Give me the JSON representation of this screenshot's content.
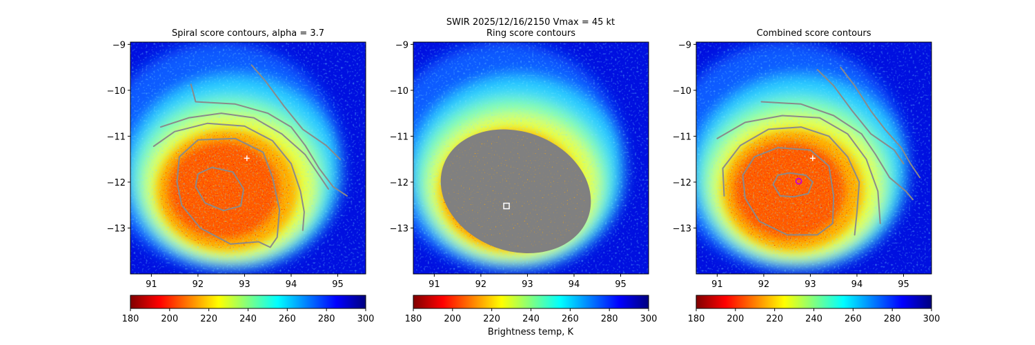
{
  "figure": {
    "suptitle_line1": "SWIR  2025/12/16/2150    Vmax = 45 kt",
    "colorbar_label": "Brightness temp, K"
  },
  "chart_data": [
    {
      "type": "heatmap",
      "title": "Spiral score contours, alpha =  3.7",
      "xlim": [
        90.55,
        95.6
      ],
      "ylim": [
        -14.0,
        -8.95
      ],
      "x_ticks": [
        91,
        92,
        93,
        94,
        95
      ],
      "y_ticks": [
        -9,
        -10,
        -11,
        -12,
        -13
      ],
      "colorbar": {
        "range": [
          180,
          300
        ],
        "ticks": [
          180,
          200,
          220,
          240,
          260,
          280,
          300
        ],
        "colormap": "jet_r"
      },
      "marker": {
        "symbol": "+",
        "x": 93.05,
        "y": -11.48,
        "color": "#ffffff"
      },
      "contours": [
        [
          [
            92.3,
            -11.68
          ],
          [
            92.75,
            -11.78
          ],
          [
            92.98,
            -12.15
          ],
          [
            92.92,
            -12.52
          ],
          [
            92.55,
            -12.62
          ],
          [
            92.15,
            -12.45
          ],
          [
            91.95,
            -12.1
          ],
          [
            92.0,
            -11.82
          ],
          [
            92.3,
            -11.68
          ]
        ],
        [
          [
            92.0,
            -11.08
          ],
          [
            92.8,
            -11.05
          ],
          [
            93.4,
            -11.35
          ],
          [
            93.6,
            -11.9
          ],
          [
            93.75,
            -12.6
          ],
          [
            93.7,
            -13.2
          ],
          [
            93.55,
            -13.42
          ],
          [
            93.3,
            -13.3
          ],
          [
            92.7,
            -13.35
          ],
          [
            92.05,
            -13.0
          ],
          [
            91.65,
            -12.5
          ],
          [
            91.55,
            -12.0
          ],
          [
            91.6,
            -11.45
          ],
          [
            92.0,
            -11.08
          ]
        ],
        [
          [
            91.05,
            -11.22
          ],
          [
            91.5,
            -10.9
          ],
          [
            92.2,
            -10.72
          ],
          [
            93.0,
            -10.78
          ],
          [
            93.6,
            -11.1
          ],
          [
            94.0,
            -11.6
          ],
          [
            94.2,
            -12.2
          ],
          [
            94.28,
            -12.65
          ],
          [
            94.25,
            -13.05
          ]
        ],
        [
          [
            91.2,
            -10.8
          ],
          [
            91.8,
            -10.6
          ],
          [
            92.5,
            -10.5
          ],
          [
            93.2,
            -10.6
          ],
          [
            93.8,
            -10.95
          ],
          [
            94.3,
            -11.4
          ],
          [
            94.6,
            -11.85
          ],
          [
            94.8,
            -12.15
          ]
        ],
        [
          [
            91.85,
            -9.87
          ],
          [
            91.95,
            -10.25
          ],
          [
            92.8,
            -10.3
          ],
          [
            93.5,
            -10.5
          ],
          [
            94.0,
            -10.8
          ],
          [
            94.3,
            -11.2
          ],
          [
            94.6,
            -11.7
          ],
          [
            94.9,
            -12.1
          ],
          [
            95.2,
            -12.3
          ]
        ],
        [
          [
            93.15,
            -9.45
          ],
          [
            93.45,
            -9.8
          ],
          [
            93.85,
            -10.35
          ],
          [
            94.25,
            -10.85
          ],
          [
            94.75,
            -11.2
          ],
          [
            95.05,
            -11.5
          ]
        ]
      ]
    },
    {
      "type": "heatmap",
      "title": "Ring score contours",
      "xlim": [
        90.55,
        95.6
      ],
      "ylim": [
        -14.0,
        -8.95
      ],
      "x_ticks": [
        91,
        92,
        93,
        94,
        95
      ],
      "y_ticks": [
        -9,
        -10,
        -11,
        -12,
        -13
      ],
      "colorbar": {
        "range": [
          180,
          300
        ],
        "ticks": [
          180,
          200,
          220,
          240,
          260,
          280,
          300
        ],
        "colormap": "jet_r"
      },
      "marker": {
        "symbol": "square",
        "x": 92.55,
        "y": -12.52,
        "color": "#ffffff"
      },
      "ring_region": {
        "center": [
          92.75,
          -12.2
        ],
        "semi_axes": [
          1.65,
          1.3
        ],
        "color": "#808080"
      }
    },
    {
      "type": "heatmap",
      "title": "Combined score contours",
      "xlim": [
        90.55,
        95.6
      ],
      "ylim": [
        -14.0,
        -8.95
      ],
      "x_ticks": [
        91,
        92,
        93,
        94,
        95
      ],
      "y_ticks": [
        -9,
        -10,
        -11,
        -12,
        -13
      ],
      "colorbar": {
        "range": [
          180,
          300
        ],
        "ticks": [
          180,
          200,
          220,
          240,
          260,
          280,
          300
        ],
        "colormap": "jet_r"
      },
      "marker": {
        "symbol": "+",
        "x": 93.05,
        "y": -11.48,
        "color": "#ffffff"
      },
      "center_marker": {
        "symbol": "circle",
        "x": 92.75,
        "y": -11.98,
        "color": "#cc00cc"
      },
      "contours": [
        [
          [
            92.55,
            -11.8
          ],
          [
            92.9,
            -11.85
          ],
          [
            93.05,
            -12.0
          ],
          [
            92.95,
            -12.25
          ],
          [
            92.65,
            -12.32
          ],
          [
            92.35,
            -12.3
          ],
          [
            92.2,
            -12.05
          ],
          [
            92.3,
            -11.85
          ],
          [
            92.55,
            -11.8
          ]
        ],
        [
          [
            92.3,
            -11.25
          ],
          [
            93.0,
            -11.3
          ],
          [
            93.4,
            -11.65
          ],
          [
            93.5,
            -12.3
          ],
          [
            93.48,
            -12.9
          ],
          [
            93.15,
            -13.15
          ],
          [
            92.5,
            -13.15
          ],
          [
            91.9,
            -12.85
          ],
          [
            91.6,
            -12.35
          ],
          [
            91.55,
            -11.85
          ],
          [
            91.8,
            -11.45
          ],
          [
            92.3,
            -11.25
          ]
        ],
        [
          [
            91.15,
            -12.3
          ],
          [
            91.12,
            -11.7
          ],
          [
            91.5,
            -11.2
          ],
          [
            92.1,
            -10.85
          ],
          [
            92.8,
            -10.8
          ],
          [
            93.4,
            -11.0
          ],
          [
            93.8,
            -11.45
          ],
          [
            94.05,
            -12.0
          ],
          [
            94.0,
            -12.65
          ],
          [
            93.95,
            -13.15
          ]
        ],
        [
          [
            91.0,
            -11.05
          ],
          [
            91.6,
            -10.7
          ],
          [
            92.4,
            -10.55
          ],
          [
            93.2,
            -10.6
          ],
          [
            93.8,
            -10.95
          ],
          [
            94.2,
            -11.5
          ],
          [
            94.45,
            -12.2
          ],
          [
            94.5,
            -12.9
          ]
        ],
        [
          [
            91.95,
            -10.25
          ],
          [
            92.8,
            -10.3
          ],
          [
            93.5,
            -10.55
          ],
          [
            94.1,
            -10.95
          ],
          [
            94.4,
            -11.4
          ],
          [
            94.7,
            -11.9
          ],
          [
            95.05,
            -12.2
          ],
          [
            95.2,
            -12.38
          ]
        ],
        [
          [
            93.15,
            -9.55
          ],
          [
            93.5,
            -9.9
          ],
          [
            93.9,
            -10.45
          ],
          [
            94.3,
            -10.95
          ],
          [
            94.8,
            -11.3
          ],
          [
            95.0,
            -11.6
          ]
        ],
        [
          [
            93.65,
            -9.5
          ],
          [
            93.95,
            -9.9
          ],
          [
            94.3,
            -10.45
          ],
          [
            94.6,
            -10.85
          ],
          [
            94.95,
            -11.25
          ],
          [
            95.15,
            -11.6
          ],
          [
            95.35,
            -11.9
          ]
        ]
      ]
    }
  ]
}
